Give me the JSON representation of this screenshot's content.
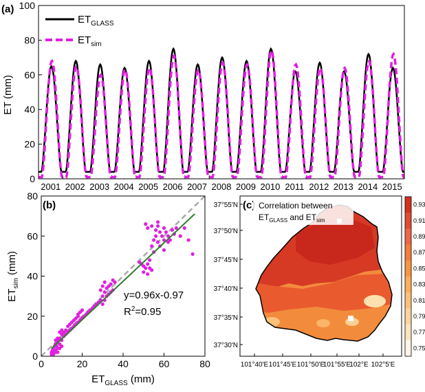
{
  "chart_data": [
    {
      "panel_label": "(a)",
      "type": "line",
      "ylabel": "ET (mm)",
      "ylim": [
        0,
        100
      ],
      "yticks": [
        0,
        20,
        40,
        60,
        80,
        100
      ],
      "xticks": [
        "2001",
        "2002",
        "2003",
        "2004",
        "2005",
        "2006",
        "2007",
        "2008",
        "2009",
        "2010",
        "2011",
        "2012",
        "2013",
        "2014",
        "2015"
      ],
      "legend_position": "top-left",
      "series": [
        {
          "name_main": "ET",
          "name_sub": "GLASS",
          "color": "#000000",
          "style": "solid"
        },
        {
          "name_main": "ET",
          "name_sub": "sim",
          "color": "#e020e0",
          "style": "dashed"
        }
      ],
      "annual_peaks_glass": [
        65,
        68,
        66,
        64,
        68,
        75,
        66,
        70,
        68,
        75,
        62,
        67,
        62,
        72,
        64
      ],
      "annual_peaks_sim": [
        68,
        65,
        60,
        63,
        64,
        71,
        63,
        67,
        66,
        74,
        66,
        64,
        64,
        68,
        72
      ],
      "annual_min_glass": 4,
      "annual_min_sim": 1
    },
    {
      "panel_label": "(b)",
      "type": "scatter",
      "xlabel_main": "ET",
      "xlabel_sub": "GLASS",
      "xlabel_unit": " (mm)",
      "ylabel_main": "ET",
      "ylabel_sub": "sim",
      "ylabel_unit": " (mm)",
      "xlim": [
        0,
        80
      ],
      "ylim": [
        0,
        80
      ],
      "xticks": [
        0,
        20,
        40,
        60,
        80
      ],
      "yticks": [
        0,
        20,
        40,
        60,
        80
      ],
      "fit": {
        "slope": 0.96,
        "intercept": -0.97,
        "label": "y=0.96x-0.97",
        "r2_main": "R",
        "r2_sup": "2",
        "r2_rest": "=0.95",
        "color": "#2e7d2e"
      },
      "one_to_one_color": "#aaaaaa",
      "point_color": "#e020e0",
      "points": [
        [
          5,
          2
        ],
        [
          5.5,
          3
        ],
        [
          6,
          4
        ],
        [
          6,
          2.5
        ],
        [
          6.5,
          5
        ],
        [
          7,
          6
        ],
        [
          7,
          3
        ],
        [
          7.5,
          5
        ],
        [
          8,
          7
        ],
        [
          8,
          4
        ],
        [
          8.5,
          8
        ],
        [
          9,
          6
        ],
        [
          9,
          9
        ],
        [
          10,
          8
        ],
        [
          10,
          11
        ],
        [
          11,
          10
        ],
        [
          11,
          12
        ],
        [
          12,
          11
        ],
        [
          12,
          13
        ],
        [
          13,
          12
        ],
        [
          13,
          15
        ],
        [
          14,
          13
        ],
        [
          14,
          16
        ],
        [
          15,
          14
        ],
        [
          15,
          17
        ],
        [
          16,
          15
        ],
        [
          16,
          18
        ],
        [
          17,
          16
        ],
        [
          17,
          19
        ],
        [
          18,
          17
        ],
        [
          18,
          20
        ],
        [
          19,
          18
        ],
        [
          20,
          19
        ],
        [
          21,
          20
        ],
        [
          22,
          21
        ],
        [
          23,
          22
        ],
        [
          24,
          23
        ],
        [
          25,
          24
        ],
        [
          26,
          25
        ],
        [
          27,
          26
        ],
        [
          28,
          27
        ],
        [
          29,
          28
        ],
        [
          30,
          30
        ],
        [
          30,
          26
        ],
        [
          31,
          32
        ],
        [
          31,
          28
        ],
        [
          32,
          30
        ],
        [
          32,
          34
        ],
        [
          33,
          31
        ],
        [
          33,
          35
        ],
        [
          34,
          36
        ],
        [
          34,
          32
        ],
        [
          35,
          38
        ],
        [
          35,
          33
        ],
        [
          36,
          37
        ],
        [
          50,
          45
        ],
        [
          50,
          42
        ],
        [
          51,
          44
        ],
        [
          52,
          41
        ],
        [
          52,
          46
        ],
        [
          53,
          44
        ],
        [
          53,
          48
        ],
        [
          54,
          43
        ],
        [
          54,
          55
        ],
        [
          55,
          52
        ],
        [
          55,
          58
        ],
        [
          56,
          60
        ],
        [
          56,
          63
        ],
        [
          57,
          57
        ],
        [
          57,
          65
        ],
        [
          58,
          62
        ],
        [
          58,
          55
        ],
        [
          59,
          60
        ],
        [
          60,
          64
        ],
        [
          60,
          58
        ],
        [
          61,
          62
        ],
        [
          62,
          60
        ],
        [
          63,
          58
        ],
        [
          64,
          63
        ],
        [
          65,
          61
        ],
        [
          66,
          64
        ],
        [
          68,
          60
        ],
        [
          70,
          64
        ],
        [
          72,
          58
        ],
        [
          74,
          51
        ],
        [
          5,
          1
        ],
        [
          6,
          1
        ],
        [
          7,
          2
        ],
        [
          8,
          2
        ],
        [
          9,
          4
        ],
        [
          10,
          5
        ],
        [
          7,
          8
        ],
        [
          8,
          9
        ],
        [
          9,
          12
        ],
        [
          10,
          13
        ],
        [
          18,
          21
        ],
        [
          19,
          22
        ],
        [
          20,
          23
        ],
        [
          29,
          33
        ],
        [
          30,
          35
        ],
        [
          31,
          37
        ],
        [
          48,
          47
        ],
        [
          49,
          46
        ],
        [
          51,
          66
        ],
        [
          52,
          64
        ],
        [
          54,
          65
        ],
        [
          57,
          67
        ],
        [
          60,
          53
        ],
        [
          62,
          57
        ]
      ]
    },
    {
      "panel_label": "(c)",
      "type": "heatmap",
      "title_line1": "Correlation between",
      "title_line2_main1": "ET",
      "title_line2_sub1": "GLASS",
      "title_line2_mid": " and ET",
      "title_line2_sub2": "sim",
      "xticks": [
        "101°40'E",
        "101°45'E",
        "101°50'E",
        "101°55'E",
        "102°E",
        "102°5'E"
      ],
      "yticks": [
        "37°55'N",
        "37°50'N",
        "37°45'N",
        "37°40'N",
        "37°35'N",
        "37°30'N"
      ],
      "colorbar_ticks": [
        "0.93",
        "0.91",
        "0.89",
        "0.87",
        "0.85",
        "0.83",
        "0.81",
        "0.79",
        "0.77",
        "0.75"
      ],
      "colorbar_colors": [
        "#d7301f",
        "#e34a33",
        "#ef6548",
        "#f47c3c",
        "#f89540",
        "#fcae5a",
        "#fdc07a",
        "#fdd49e",
        "#fee4bc",
        "#fff5e6"
      ]
    }
  ]
}
